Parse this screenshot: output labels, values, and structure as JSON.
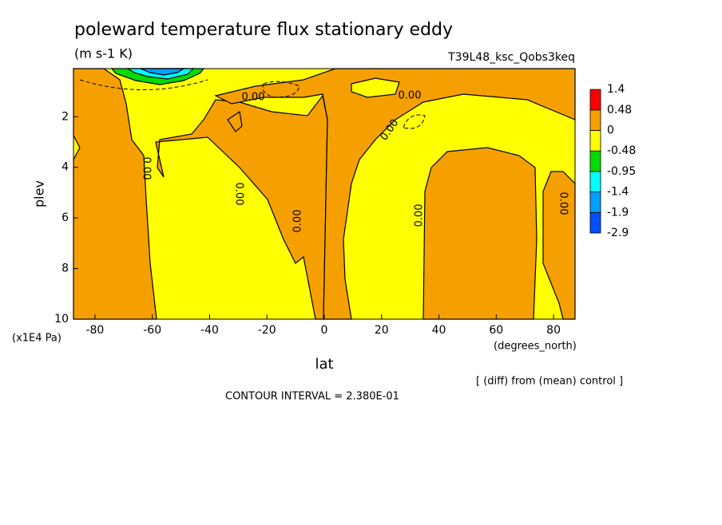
{
  "chart_data": {
    "type": "contour",
    "title": "poleward temperature flux stationary eddy",
    "units": "(m s-1 K)",
    "run": "T39L48_ksc_Qobs3keq",
    "xlabel": "lat",
    "ylabel": "plev",
    "xunit": "(degrees_north)",
    "yunit": "(x1E4 Pa)",
    "note": "[ (diff) from (mean) control ]",
    "contour_interval": "CONTOUR INTERVAL = 2.380E-01",
    "xlim": [
      -87.5,
      87.5
    ],
    "xticks": [
      -80,
      -60,
      -40,
      -20,
      0,
      20,
      40,
      60,
      80
    ],
    "ylim": [
      10,
      0.1
    ],
    "yticks": [
      2,
      4,
      6,
      8,
      10
    ],
    "levels": [
      -2.9,
      -1.9,
      -1.4,
      -0.95,
      -0.48,
      0,
      0.48,
      1.4
    ],
    "colors": [
      "#0050ff",
      "#00a0ff",
      "#00ffff",
      "#00dc00",
      "#ffff00",
      "#f5a000",
      "#ff0000"
    ],
    "contour_labels": [
      {
        "value": 0,
        "label": "0.00"
      },
      {
        "value": 0,
        "label": "0.00"
      },
      {
        "value": 0,
        "label": "0.00"
      },
      {
        "value": 0,
        "label": "0.00"
      },
      {
        "value": 0,
        "label": "0.00"
      },
      {
        "value": 0,
        "label": "0.00"
      },
      {
        "value": 0,
        "label": "0.00"
      },
      {
        "value": 0,
        "label": "0.00"
      }
    ]
  }
}
